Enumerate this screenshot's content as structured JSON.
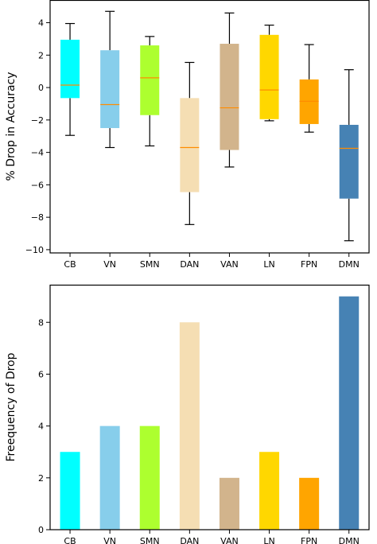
{
  "chart_data": [
    {
      "type": "box",
      "title": "",
      "xlabel": "",
      "ylabel": "% Drop in Accuracy",
      "ylim": [
        -10.2,
        5.4
      ],
      "yticks": [
        4,
        2,
        0,
        -2,
        -4,
        -6,
        -8,
        -10
      ],
      "ytick_labels": [
        "4",
        "2",
        "0",
        "−2",
        "−4",
        "−6",
        "−8",
        "−10"
      ],
      "grid": false,
      "categories": [
        "CB",
        "VN",
        "SMN",
        "DAN",
        "VAN",
        "LN",
        "FPN",
        "DMN"
      ],
      "colors": [
        "#00ffff",
        "#87ceeb",
        "#adff2f",
        "#f5deb3",
        "#d2b48c",
        "#ffd700",
        "#ffa500",
        "#4682b4"
      ],
      "median_color": "#ff8c00",
      "boxes": [
        {
          "whisker_low": -2.95,
          "q1": -0.65,
          "median": 0.15,
          "q3": 2.95,
          "whisker_high": 3.95
        },
        {
          "whisker_low": -3.7,
          "q1": -2.5,
          "median": -1.05,
          "q3": 2.3,
          "whisker_high": 4.7
        },
        {
          "whisker_low": -3.6,
          "q1": -1.7,
          "median": 0.6,
          "q3": 2.6,
          "whisker_high": 3.15
        },
        {
          "whisker_low": -8.45,
          "q1": -6.45,
          "median": -3.7,
          "q3": -0.65,
          "whisker_high": 1.55
        },
        {
          "whisker_low": -4.9,
          "q1": -3.85,
          "median": -1.25,
          "q3": 2.7,
          "whisker_high": 4.6
        },
        {
          "whisker_low": -2.05,
          "q1": -1.95,
          "median": -0.15,
          "q3": 3.25,
          "whisker_high": 3.85
        },
        {
          "whisker_low": -2.75,
          "q1": -2.25,
          "median": -0.85,
          "q3": 0.5,
          "whisker_high": 2.65
        },
        {
          "whisker_low": -9.45,
          "q1": -6.85,
          "median": -3.75,
          "q3": -2.3,
          "whisker_high": 1.1
        }
      ]
    },
    {
      "type": "bar",
      "title": "",
      "xlabel": "",
      "ylabel": "Freequency of Drop",
      "ylim": [
        0,
        9.45
      ],
      "yticks": [
        0,
        2,
        4,
        6,
        8
      ],
      "ytick_labels": [
        "0",
        "2",
        "4",
        "6",
        "8"
      ],
      "grid": false,
      "categories": [
        "CB",
        "VN",
        "SMN",
        "DAN",
        "VAN",
        "LN",
        "FPN",
        "DMN"
      ],
      "values": [
        3,
        4,
        4,
        8,
        2,
        3,
        2,
        9
      ],
      "colors": [
        "#00ffff",
        "#87ceeb",
        "#adff2f",
        "#f5deb3",
        "#d2b48c",
        "#ffd700",
        "#ffa500",
        "#4682b4"
      ]
    }
  ]
}
